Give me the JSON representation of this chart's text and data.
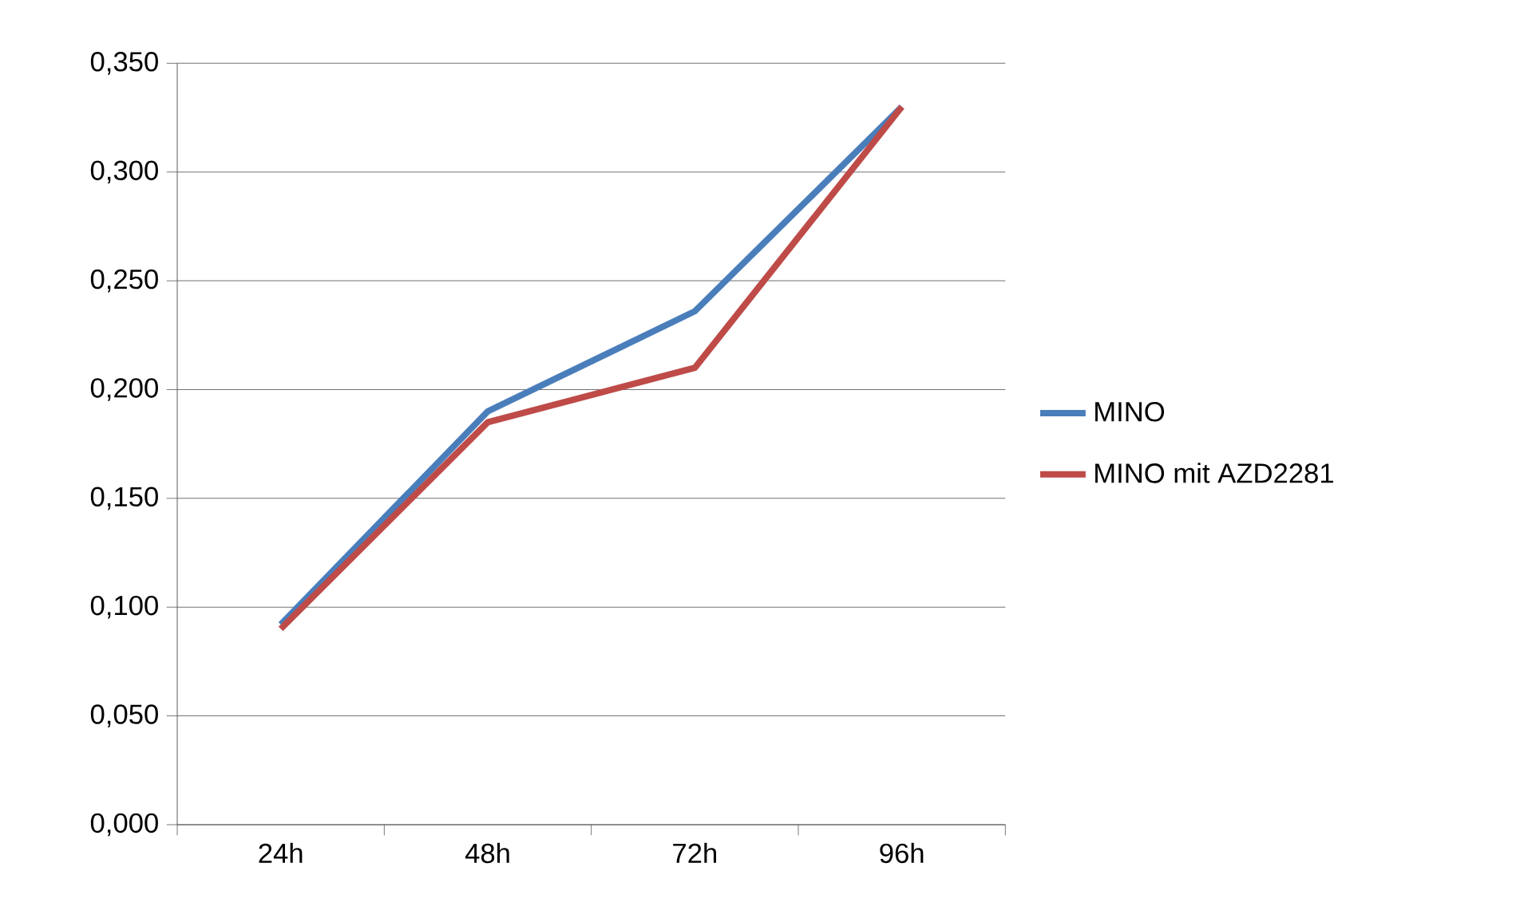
{
  "chart_data": {
    "type": "line",
    "categories": [
      "24h",
      "48h",
      "72h",
      "96h"
    ],
    "series": [
      {
        "name": "MINO",
        "color": "#4a7ebb",
        "values": [
          0.092,
          0.19,
          0.236,
          0.33
        ]
      },
      {
        "name": "MINO mit AZD2281",
        "color": "#be4b48",
        "values": [
          0.09,
          0.185,
          0.21,
          0.33
        ]
      }
    ],
    "ylim": [
      0,
      0.35
    ],
    "yticks": [
      {
        "value": 0,
        "label": "0,000"
      },
      {
        "value": 0.05,
        "label": "0,050"
      },
      {
        "value": 0.1,
        "label": "0,100"
      },
      {
        "value": 0.15,
        "label": "0,150"
      },
      {
        "value": 0.2,
        "label": "0,200"
      },
      {
        "value": 0.25,
        "label": "0,250"
      },
      {
        "value": 0.3,
        "label": "0,300"
      },
      {
        "value": 0.35,
        "label": "0,350"
      }
    ],
    "grid": "y",
    "legend": "right",
    "marker": "none",
    "line_style": "solid"
  }
}
